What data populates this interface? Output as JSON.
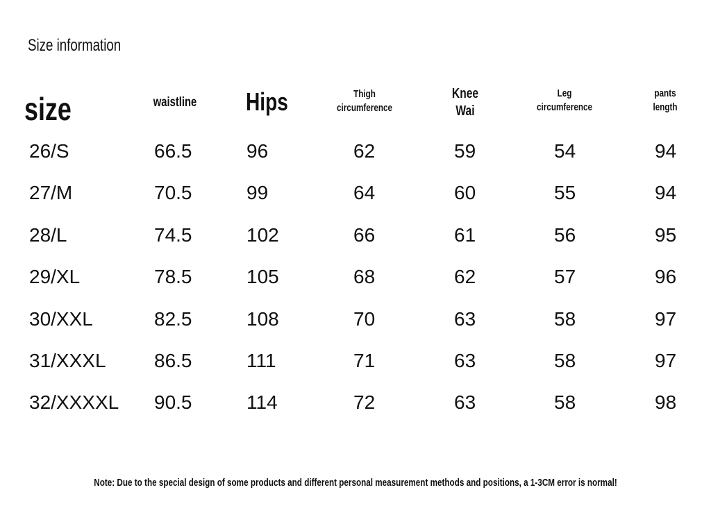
{
  "title": "Size information",
  "table": {
    "headers": [
      [
        "size"
      ],
      [
        "waistline"
      ],
      [
        "Hips"
      ],
      [
        "Thigh",
        "circumference"
      ],
      [
        "Knee",
        "Wai"
      ],
      [
        "Leg",
        "circumference"
      ],
      [
        "pants",
        "length"
      ]
    ],
    "rows": [
      [
        "26/S",
        66.5,
        96,
        62,
        59,
        54,
        94
      ],
      [
        "27/M",
        70.5,
        99,
        64,
        60,
        55,
        94
      ],
      [
        "28/L",
        74.5,
        102,
        66,
        61,
        56,
        95
      ],
      [
        "29/XL",
        78.5,
        105,
        68,
        62,
        57,
        96
      ],
      [
        "30/XXL",
        82.5,
        108,
        70,
        63,
        58,
        97
      ],
      [
        "31/XXXL",
        86.5,
        111,
        71,
        63,
        58,
        97
      ],
      [
        "32/XXXXL",
        90.5,
        114,
        72,
        63,
        58,
        98
      ]
    ]
  },
  "note": "Note: Due to the special design of some products and different personal measurement methods and positions, a 1-3CM error is normal!"
}
